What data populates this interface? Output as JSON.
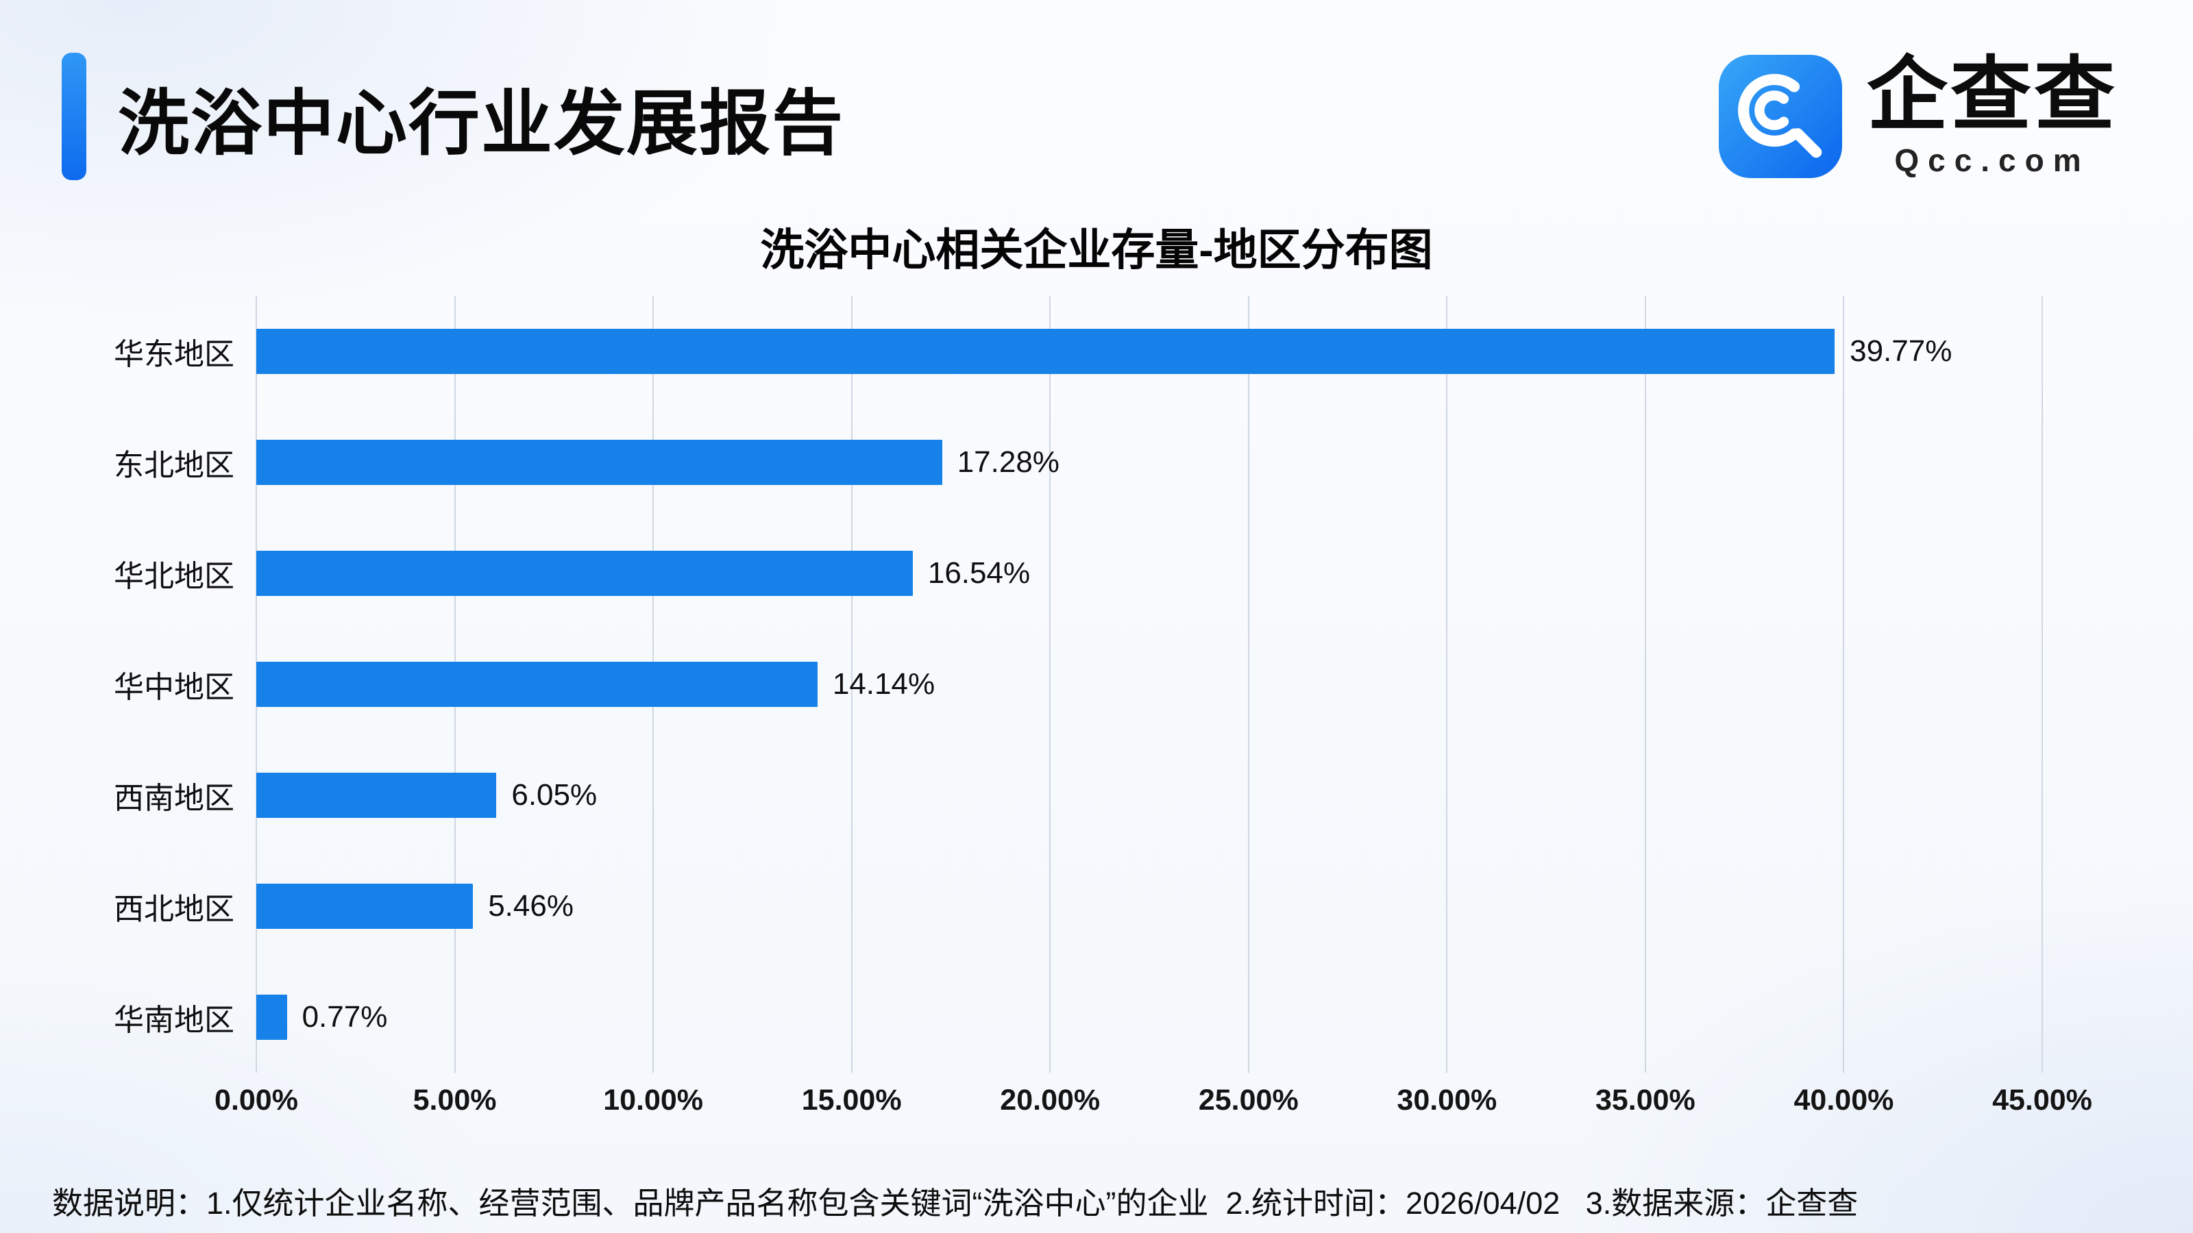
{
  "header": {
    "report_title": "洗浴中心行业发展报告",
    "brand_name": "企查查",
    "brand_domain": "Qcc.com"
  },
  "chart_data": {
    "type": "bar",
    "orientation": "horizontal",
    "title": "洗浴中心相关企业存量-地区分布图",
    "categories": [
      "华东地区",
      "东北地区",
      "华北地区",
      "华中地区",
      "西南地区",
      "西北地区",
      "华南地区"
    ],
    "values": [
      39.77,
      17.28,
      16.54,
      14.14,
      6.05,
      5.46,
      0.77
    ],
    "value_labels": [
      "39.77%",
      "17.28%",
      "16.54%",
      "14.14%",
      "6.05%",
      "5.46%",
      "0.77%"
    ],
    "x_ticks": [
      "0.00%",
      "5.00%",
      "10.00%",
      "15.00%",
      "20.00%",
      "25.00%",
      "30.00%",
      "35.00%",
      "40.00%",
      "45.00%"
    ],
    "xlim": [
      0,
      45
    ],
    "grid": true,
    "legend": false,
    "bar_color": "#1681e8"
  },
  "footer": {
    "note": "数据说明：1.仅统计企业名称、经营范围、品牌产品名称包含关键词“洗浴中心”的企业  2.统计时间：2026/04/02   3.数据来源：企查查"
  },
  "colors": {
    "accent_blue": "#1681e8",
    "grid_line": "#cfd7e2",
    "text_dark": "#111111"
  }
}
